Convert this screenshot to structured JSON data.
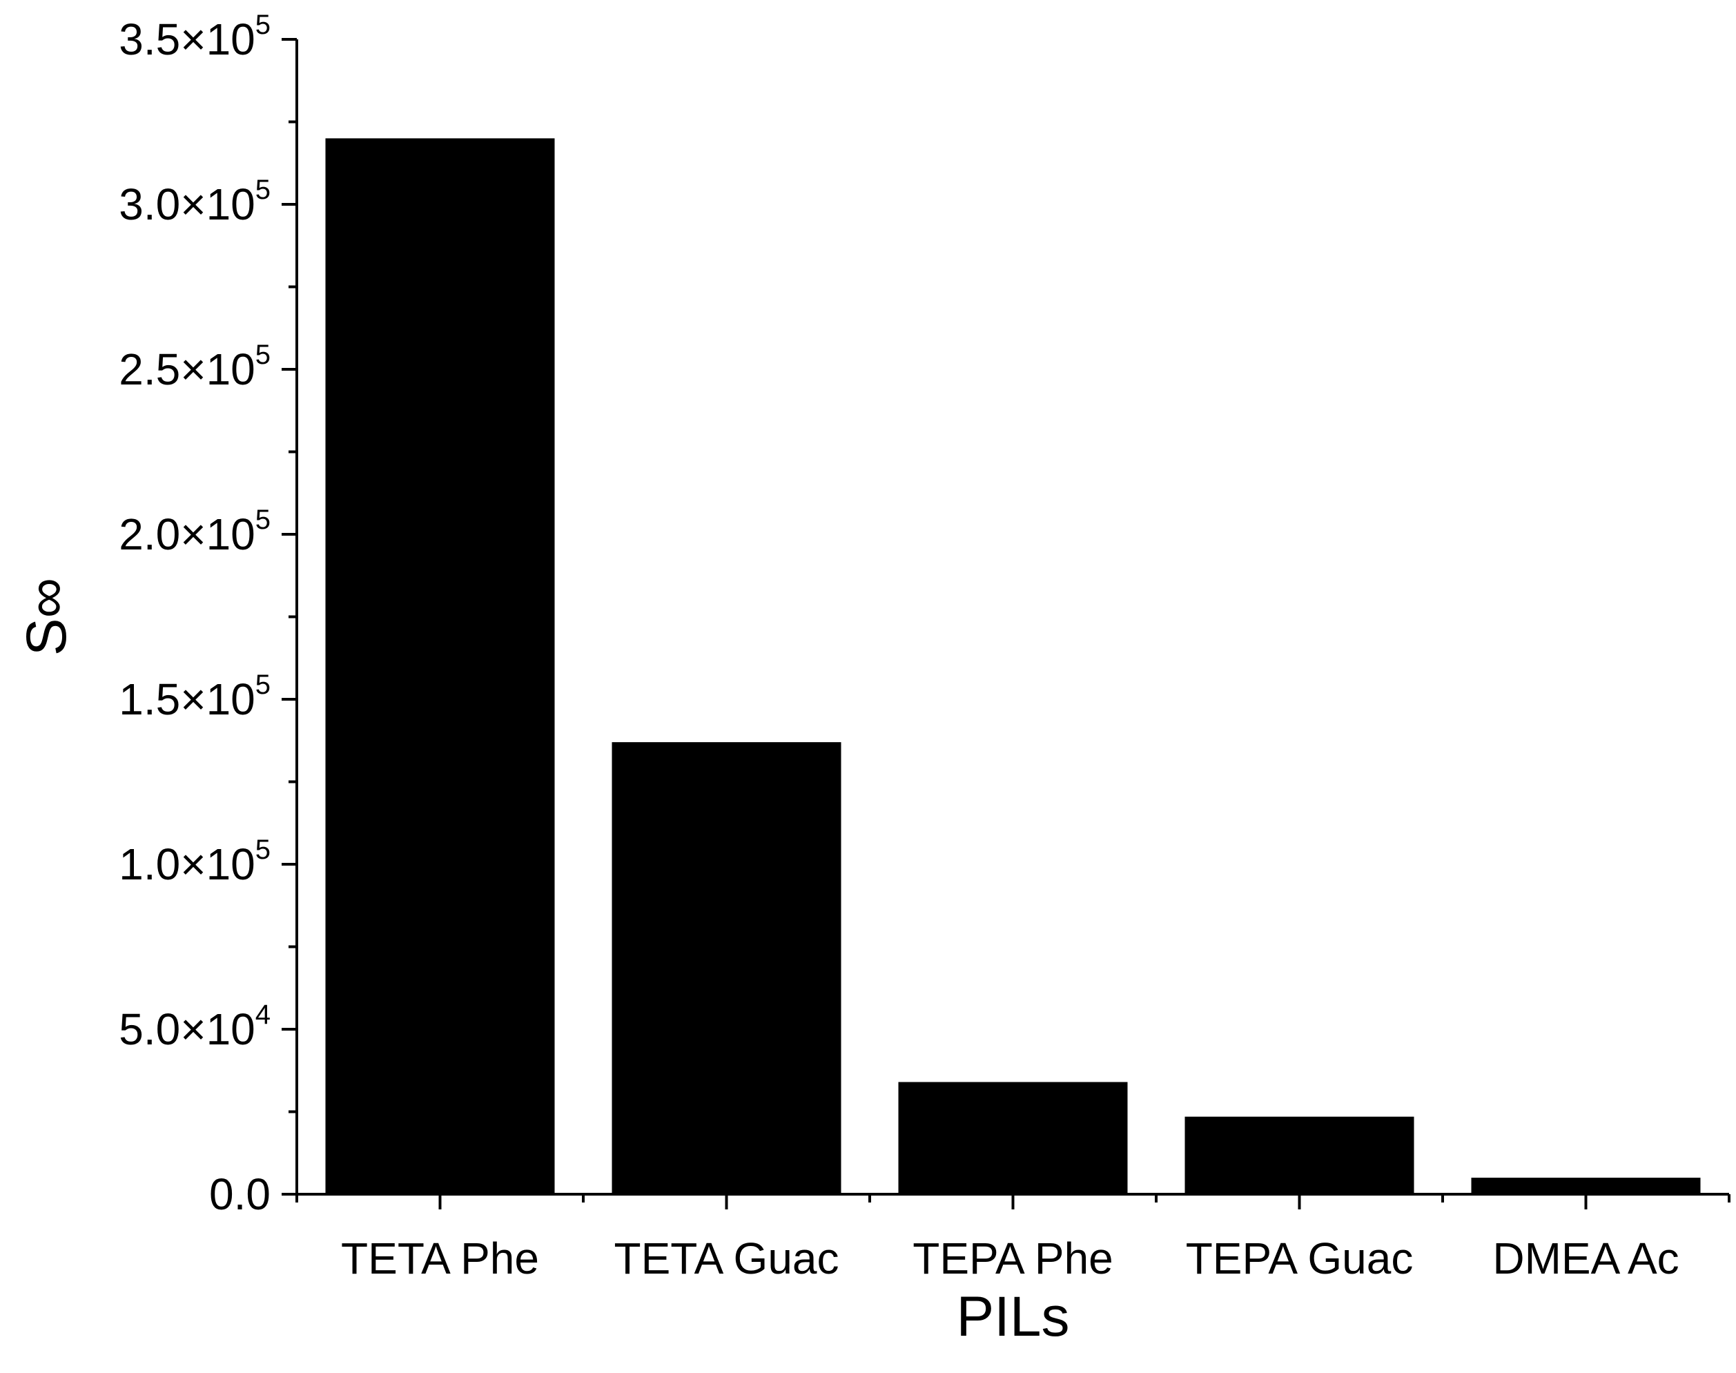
{
  "chart_data": {
    "type": "bar",
    "categories": [
      "TETA Phe",
      "TETA Guac",
      "TEPA Phe",
      "TEPA Guac",
      "DMEA Ac"
    ],
    "values": [
      320000,
      137000,
      34000,
      23500,
      5000
    ],
    "xlabel": "PILs",
    "ylabel": "S∞",
    "ylim": [
      0,
      350000
    ],
    "yticks": [
      {
        "value": 0,
        "mantissa": "0.0",
        "exponent": ""
      },
      {
        "value": 50000,
        "mantissa": "5.0×10",
        "exponent": "4"
      },
      {
        "value": 100000,
        "mantissa": "1.0×10",
        "exponent": "5"
      },
      {
        "value": 150000,
        "mantissa": "1.5×10",
        "exponent": "5"
      },
      {
        "value": 200000,
        "mantissa": "2.0×10",
        "exponent": "5"
      },
      {
        "value": 250000,
        "mantissa": "2.5×10",
        "exponent": "5"
      },
      {
        "value": 300000,
        "mantissa": "3.0×10",
        "exponent": "5"
      },
      {
        "value": 350000,
        "mantissa": "3.5×10",
        "exponent": "5"
      }
    ],
    "grid": false,
    "legend": "none",
    "bar_color": "#000000"
  }
}
